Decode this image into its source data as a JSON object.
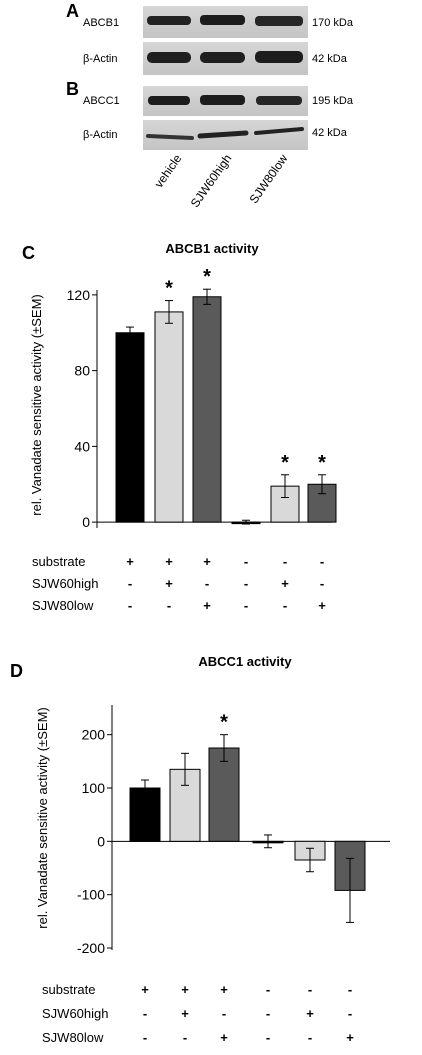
{
  "blots": {
    "panel_a_label": "A",
    "panel_b_label": "B",
    "abcb1_label": "ABCB1",
    "abcb1_kda": "170 kDa",
    "actin_a_label": "β-Actin",
    "actin_a_kda": "42 kDa",
    "abcc1_label": "ABCC1",
    "abcc1_kda": "195 kDa",
    "actin_b_label": "β-Actin",
    "actin_b_kda": "42 kDa",
    "lanes": [
      "vehicle",
      "SJW60high",
      "SJW80low"
    ]
  },
  "chart_data": [
    {
      "panel": "C",
      "type": "bar",
      "title": "ABCB1 activity",
      "ylabel": "rel. Vanadate sensitive activity (±SEM)",
      "ylim": [
        -20,
        140
      ],
      "yticks": [
        0,
        40,
        80,
        120
      ],
      "values": [
        100,
        111,
        119,
        0,
        19,
        20
      ],
      "errors": [
        3,
        6,
        4,
        1,
        6,
        5
      ],
      "colors": [
        "#000000",
        "#d9d9d9",
        "#5a5a5a",
        "#000000",
        "#d9d9d9",
        "#5a5a5a"
      ],
      "significant": [
        false,
        true,
        true,
        false,
        true,
        true
      ],
      "marker": "*",
      "conditions": [
        {
          "label": "substrate",
          "signs": [
            "+",
            "+",
            "+",
            "-",
            "-",
            "-"
          ]
        },
        {
          "label": "SJW60high",
          "signs": [
            "-",
            "+",
            "-",
            "-",
            "+",
            "-"
          ]
        },
        {
          "label": "SJW80low",
          "signs": [
            "-",
            "-",
            "+",
            "-",
            "-",
            "+"
          ]
        }
      ]
    },
    {
      "panel": "D",
      "type": "bar",
      "title": "ABCC1 activity",
      "ylabel": "rel. Vanadate sensitive activity (±SEM)",
      "ylim": [
        -200,
        250
      ],
      "yticks": [
        -200,
        -100,
        0,
        100,
        200
      ],
      "values": [
        100,
        135,
        175,
        0,
        -35,
        -92
      ],
      "errors": [
        15,
        30,
        25,
        12,
        22,
        60
      ],
      "colors": [
        "#000000",
        "#d9d9d9",
        "#5a5a5a",
        "#000000",
        "#d9d9d9",
        "#5a5a5a"
      ],
      "significant": [
        false,
        false,
        true,
        false,
        false,
        false
      ],
      "marker": "*",
      "conditions": [
        {
          "label": "substrate",
          "signs": [
            "+",
            "+",
            "+",
            "-",
            "-",
            "-"
          ]
        },
        {
          "label": "SJW60high",
          "signs": [
            "-",
            "+",
            "-",
            "-",
            "+",
            "-"
          ]
        },
        {
          "label": "SJW80low",
          "signs": [
            "-",
            "-",
            "+",
            "-",
            "-",
            "+"
          ]
        }
      ]
    }
  ]
}
